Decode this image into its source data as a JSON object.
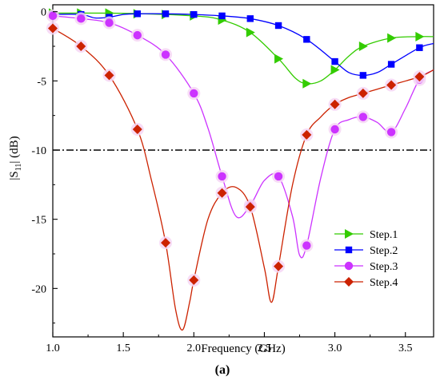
{
  "chart_data": {
    "type": "line",
    "title": "",
    "caption": "(a)",
    "xlabel": "Frequency (GHz)",
    "ylabel": "|S11| (dB)",
    "ylabel_main": "|S",
    "ylabel_sub": "11",
    "ylabel_tail": "| (dB)",
    "xlim": [
      1.0,
      3.7
    ],
    "ylim": [
      -23.5,
      0.5
    ],
    "x_ticks": [
      1.0,
      1.5,
      2.0,
      2.5,
      3.0,
      3.5
    ],
    "x_tick_labels": [
      "1.0",
      "1.5",
      "2.0",
      "2.5",
      "3.0",
      "3.5"
    ],
    "y_ticks": [
      0,
      -5,
      -10,
      -15,
      -20
    ],
    "y_tick_labels": [
      "0",
      "-5",
      "-10",
      "-15",
      "-20"
    ],
    "reference_line": {
      "y": -10,
      "style": "dash-dot",
      "color": "#000000"
    },
    "legend_position": "bottom-right",
    "series": [
      {
        "name": "Step.1",
        "color": "#33cc00",
        "marker": "triangle-right",
        "points": [
          [
            1.0,
            -0.1
          ],
          [
            1.2,
            -0.1
          ],
          [
            1.4,
            -0.1
          ],
          [
            1.6,
            -0.15
          ],
          [
            1.8,
            -0.2
          ],
          [
            2.0,
            -0.3
          ],
          [
            2.2,
            -0.6
          ],
          [
            2.4,
            -1.5
          ],
          [
            2.6,
            -3.4
          ],
          [
            2.8,
            -5.2
          ],
          [
            3.0,
            -4.2
          ],
          [
            3.2,
            -2.5
          ],
          [
            3.4,
            -1.9
          ],
          [
            3.6,
            -1.8
          ]
        ],
        "curve": [
          [
            1.0,
            -0.1
          ],
          [
            1.5,
            -0.12
          ],
          [
            2.0,
            -0.3
          ],
          [
            2.2,
            -0.6
          ],
          [
            2.4,
            -1.5
          ],
          [
            2.6,
            -3.4
          ],
          [
            2.72,
            -4.8
          ],
          [
            2.8,
            -5.2
          ],
          [
            2.9,
            -5.0
          ],
          [
            3.0,
            -4.2
          ],
          [
            3.1,
            -3.2
          ],
          [
            3.2,
            -2.5
          ],
          [
            3.4,
            -1.9
          ],
          [
            3.6,
            -1.8
          ],
          [
            3.7,
            -1.8
          ]
        ]
      },
      {
        "name": "Step.2",
        "color": "#0000ff",
        "marker": "square",
        "points": [
          [
            1.0,
            -0.2
          ],
          [
            1.2,
            -0.2
          ],
          [
            1.4,
            -0.4
          ],
          [
            1.6,
            -0.15
          ],
          [
            1.8,
            -0.15
          ],
          [
            2.0,
            -0.2
          ],
          [
            2.2,
            -0.3
          ],
          [
            2.4,
            -0.5
          ],
          [
            2.6,
            -1.0
          ],
          [
            2.8,
            -2.0
          ],
          [
            3.0,
            -3.6
          ],
          [
            3.2,
            -4.6
          ],
          [
            3.4,
            -3.8
          ],
          [
            3.6,
            -2.6
          ]
        ],
        "curve": [
          [
            1.0,
            -0.2
          ],
          [
            1.2,
            -0.2
          ],
          [
            1.3,
            -0.45
          ],
          [
            1.4,
            -0.4
          ],
          [
            1.5,
            -0.2
          ],
          [
            1.6,
            -0.15
          ],
          [
            1.8,
            -0.15
          ],
          [
            2.0,
            -0.2
          ],
          [
            2.2,
            -0.3
          ],
          [
            2.4,
            -0.5
          ],
          [
            2.6,
            -1.0
          ],
          [
            2.8,
            -2.0
          ],
          [
            3.0,
            -3.6
          ],
          [
            3.1,
            -4.4
          ],
          [
            3.2,
            -4.6
          ],
          [
            3.3,
            -4.4
          ],
          [
            3.4,
            -3.8
          ],
          [
            3.6,
            -2.6
          ],
          [
            3.7,
            -2.3
          ]
        ]
      },
      {
        "name": "Step.3",
        "color": "#cc33ff",
        "marker": "circle",
        "points": [
          [
            1.0,
            -0.3
          ],
          [
            1.2,
            -0.5
          ],
          [
            1.4,
            -0.8
          ],
          [
            1.6,
            -1.7
          ],
          [
            1.8,
            -3.1
          ],
          [
            2.0,
            -5.9
          ],
          [
            2.2,
            -11.9
          ],
          [
            2.4,
            -14.0
          ],
          [
            2.6,
            -11.9
          ],
          [
            2.8,
            -16.9
          ],
          [
            3.0,
            -8.5
          ],
          [
            3.2,
            -7.6
          ],
          [
            3.4,
            -8.7
          ],
          [
            3.6,
            -4.9
          ]
        ],
        "curve": [
          [
            1.0,
            -0.3
          ],
          [
            1.2,
            -0.5
          ],
          [
            1.4,
            -0.8
          ],
          [
            1.6,
            -1.7
          ],
          [
            1.8,
            -3.1
          ],
          [
            2.0,
            -5.9
          ],
          [
            2.1,
            -8.4
          ],
          [
            2.2,
            -11.9
          ],
          [
            2.3,
            -14.8
          ],
          [
            2.4,
            -14.0
          ],
          [
            2.5,
            -12.2
          ],
          [
            2.6,
            -11.9
          ],
          [
            2.7,
            -14.8
          ],
          [
            2.75,
            -17.6
          ],
          [
            2.8,
            -16.9
          ],
          [
            2.9,
            -12.0
          ],
          [
            3.0,
            -8.5
          ],
          [
            3.1,
            -7.8
          ],
          [
            3.2,
            -7.6
          ],
          [
            3.3,
            -8.0
          ],
          [
            3.4,
            -8.7
          ],
          [
            3.5,
            -7.0
          ],
          [
            3.6,
            -4.9
          ],
          [
            3.7,
            -4.2
          ]
        ]
      },
      {
        "name": "Step.4",
        "color": "#cc2200",
        "marker": "diamond",
        "points": [
          [
            1.0,
            -1.2
          ],
          [
            1.2,
            -2.5
          ],
          [
            1.4,
            -4.6
          ],
          [
            1.6,
            -8.5
          ],
          [
            1.8,
            -16.7
          ],
          [
            2.0,
            -19.4
          ],
          [
            2.2,
            -13.1
          ],
          [
            2.4,
            -14.1
          ],
          [
            2.6,
            -18.4
          ],
          [
            2.8,
            -8.9
          ],
          [
            3.0,
            -6.7
          ],
          [
            3.2,
            -5.9
          ],
          [
            3.4,
            -5.3
          ],
          [
            3.6,
            -4.7
          ]
        ],
        "curve": [
          [
            1.0,
            -1.2
          ],
          [
            1.2,
            -2.5
          ],
          [
            1.4,
            -4.6
          ],
          [
            1.6,
            -8.5
          ],
          [
            1.7,
            -12.2
          ],
          [
            1.8,
            -16.7
          ],
          [
            1.87,
            -21.5
          ],
          [
            1.92,
            -23.0
          ],
          [
            1.97,
            -21.0
          ],
          [
            2.0,
            -19.4
          ],
          [
            2.1,
            -15.0
          ],
          [
            2.2,
            -13.1
          ],
          [
            2.3,
            -12.7
          ],
          [
            2.4,
            -14.1
          ],
          [
            2.5,
            -18.5
          ],
          [
            2.55,
            -21.0
          ],
          [
            2.6,
            -18.4
          ],
          [
            2.7,
            -12.5
          ],
          [
            2.8,
            -8.9
          ],
          [
            2.9,
            -7.6
          ],
          [
            3.0,
            -6.7
          ],
          [
            3.1,
            -6.2
          ],
          [
            3.2,
            -5.9
          ],
          [
            3.3,
            -5.6
          ],
          [
            3.4,
            -5.3
          ],
          [
            3.6,
            -4.7
          ],
          [
            3.7,
            -4.2
          ]
        ]
      }
    ]
  }
}
